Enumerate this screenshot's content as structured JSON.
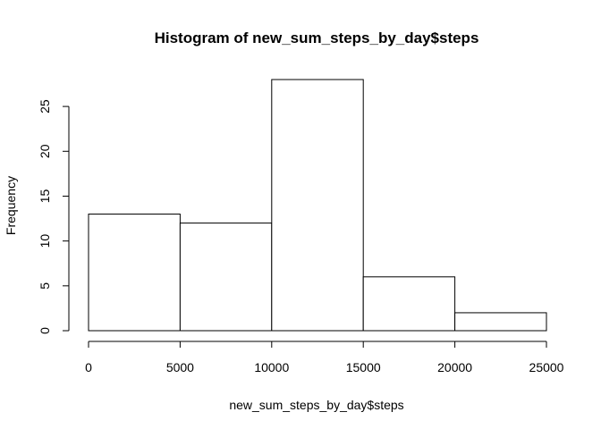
{
  "chart_data": {
    "type": "bar",
    "title": "Histogram of new_sum_steps_by_day$steps",
    "xlabel": "new_sum_steps_by_day$steps",
    "ylabel": "Frequency",
    "bins": [
      {
        "from": 0,
        "to": 5000,
        "count": 13
      },
      {
        "from": 5000,
        "to": 10000,
        "count": 12
      },
      {
        "from": 10000,
        "to": 15000,
        "count": 28
      },
      {
        "from": 15000,
        "to": 20000,
        "count": 6
      },
      {
        "from": 20000,
        "to": 25000,
        "count": 2
      }
    ],
    "xlim": [
      0,
      25000
    ],
    "ylim": [
      0,
      28
    ],
    "x_ticks": [
      0,
      5000,
      10000,
      15000,
      20000,
      25000
    ],
    "y_ticks": [
      0,
      5,
      10,
      15,
      20,
      25
    ],
    "grid": false,
    "bar_fill": "#ffffff",
    "bar_stroke": "#000000"
  }
}
